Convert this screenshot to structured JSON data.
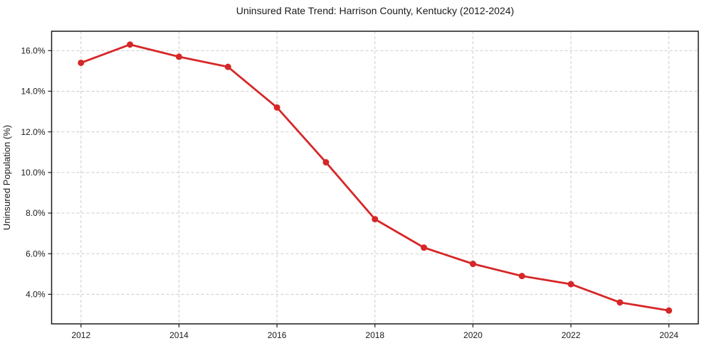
{
  "chart_data": {
    "type": "line",
    "title": "Uninsured Rate Trend: Harrison County, Kentucky (2012-2024)",
    "xlabel": "",
    "ylabel": "Uninsured Population (%)",
    "x": [
      2012,
      2013,
      2014,
      2015,
      2016,
      2017,
      2018,
      2019,
      2020,
      2021,
      2022,
      2023,
      2024
    ],
    "values": [
      15.4,
      16.3,
      15.7,
      15.2,
      13.2,
      10.5,
      7.7,
      6.3,
      5.5,
      4.9,
      4.5,
      3.6,
      3.2
    ],
    "xlim": [
      2011.4,
      2024.6
    ],
    "ylim": [
      2.545,
      16.955
    ],
    "xticks": {
      "values": [
        2012,
        2014,
        2016,
        2018,
        2020,
        2022,
        2024
      ],
      "labels": [
        "2012",
        "2014",
        "2016",
        "2018",
        "2020",
        "2022",
        "2024"
      ]
    },
    "yticks": {
      "values": [
        4,
        6,
        8,
        10,
        12,
        14,
        16
      ],
      "labels": [
        "4.0%",
        "6.0%",
        "8.0%",
        "10.0%",
        "12.0%",
        "14.0%",
        "16.0%"
      ]
    },
    "grid": true,
    "grid_style": "dashed",
    "legend": "none",
    "marker": "circle",
    "colors": {
      "line": "#d62728",
      "marker": "#d62728",
      "grid": "#cccccc",
      "axis": "#1a1a1a",
      "background": "#ffffff"
    }
  }
}
